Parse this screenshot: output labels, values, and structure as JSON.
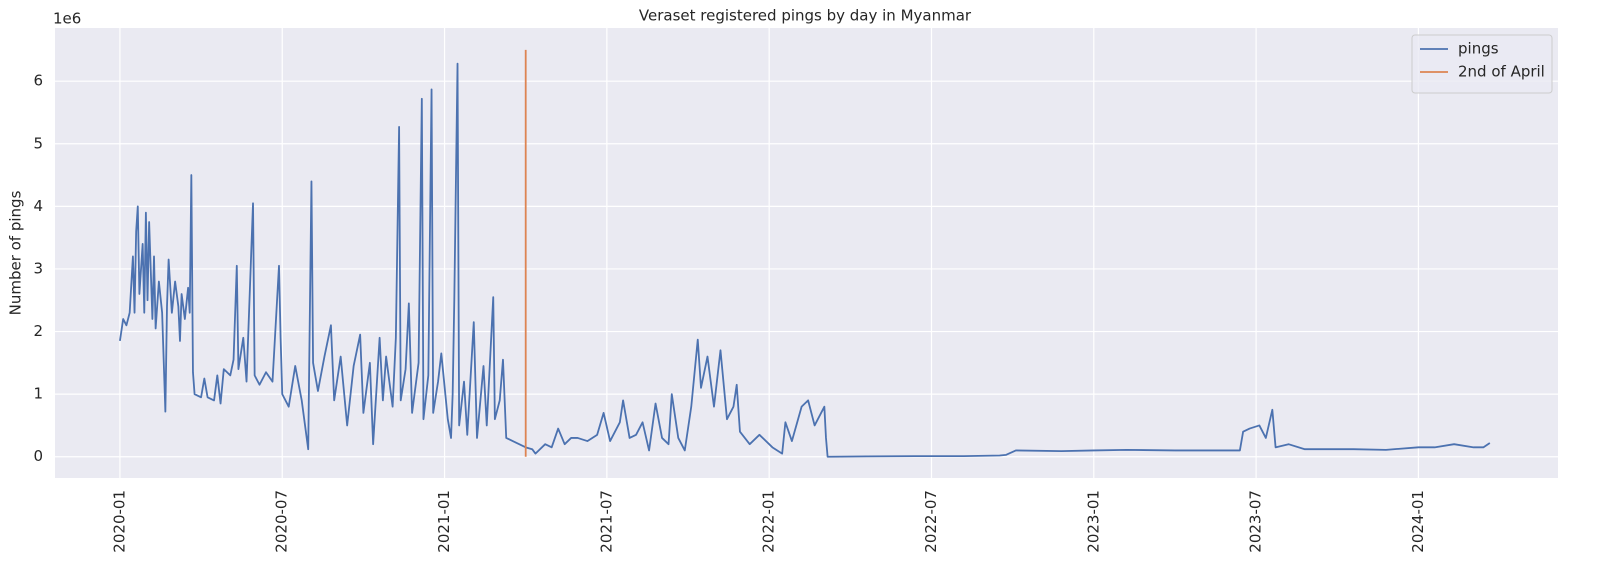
{
  "chart_data": {
    "type": "line",
    "title": "Veraset registered pings by day in Myanmar",
    "y_label": "Number of pings",
    "y_offset_label": "1e6",
    "xlim": [
      2019.8,
      2024.43
    ],
    "ylim": [
      -340000,
      6850000
    ],
    "grid": true,
    "legend": "upper right",
    "xticks": [
      {
        "value": 2020.0,
        "label": "2020-01"
      },
      {
        "value": 2020.5,
        "label": "2020-07"
      },
      {
        "value": 2021.0,
        "label": "2021-01"
      },
      {
        "value": 2021.5,
        "label": "2021-07"
      },
      {
        "value": 2022.0,
        "label": "2022-01"
      },
      {
        "value": 2022.5,
        "label": "2022-07"
      },
      {
        "value": 2023.0,
        "label": "2023-01"
      },
      {
        "value": 2023.5,
        "label": "2023-07"
      },
      {
        "value": 2024.0,
        "label": "2024-01"
      }
    ],
    "yticks": [
      0,
      {
        "value": 1000000,
        "label": "1"
      },
      {
        "value": 2000000,
        "label": "2"
      },
      {
        "value": 3000000,
        "label": "3"
      },
      {
        "value": 4000000,
        "label": "4"
      },
      {
        "value": 5000000,
        "label": "5"
      },
      {
        "value": 6000000,
        "label": "6"
      }
    ],
    "series": [
      {
        "name": "pings",
        "color": "#4c72b0",
        "x": [
          2020.0,
          2020.01,
          2020.02,
          2020.03,
          2020.04,
          2020.045,
          2020.05,
          2020.055,
          2020.06,
          2020.07,
          2020.075,
          2020.08,
          2020.085,
          2020.09,
          2020.1,
          2020.105,
          2020.11,
          2020.12,
          2020.13,
          2020.14,
          2020.145,
          2020.15,
          2020.16,
          2020.17,
          2020.18,
          2020.185,
          2020.19,
          2020.2,
          2020.21,
          2020.215,
          2020.22,
          2020.225,
          2020.23,
          2020.25,
          2020.26,
          2020.27,
          2020.29,
          2020.3,
          2020.31,
          2020.32,
          2020.34,
          2020.35,
          2020.36,
          2020.365,
          2020.38,
          2020.39,
          2020.41,
          2020.415,
          2020.43,
          2020.45,
          2020.47,
          2020.49,
          2020.495,
          2020.5,
          2020.52,
          2020.54,
          2020.56,
          2020.58,
          2020.59,
          2020.595,
          2020.61,
          2020.63,
          2020.65,
          2020.66,
          2020.68,
          2020.7,
          2020.72,
          2020.74,
          2020.75,
          2020.77,
          2020.78,
          2020.8,
          2020.81,
          2020.82,
          2020.84,
          2020.85,
          2020.86,
          2020.865,
          2020.88,
          2020.89,
          2020.9,
          2020.92,
          2020.93,
          2020.935,
          2020.95,
          2020.96,
          2020.965,
          2020.98,
          2020.99,
          2021.01,
          2021.02,
          2021.025,
          2021.03,
          2021.04,
          2021.045,
          2021.06,
          2021.07,
          2021.09,
          2021.1,
          2021.12,
          2021.13,
          2021.15,
          2021.155,
          2021.17,
          2021.18,
          2021.19,
          2021.21,
          2021.23,
          2021.25,
          2021.27,
          2021.28,
          2021.31,
          2021.33,
          2021.35,
          2021.37,
          2021.39,
          2021.41,
          2021.44,
          2021.47,
          2021.49,
          2021.51,
          2021.54,
          2021.55,
          2021.57,
          2021.59,
          2021.61,
          2021.63,
          2021.65,
          2021.67,
          2021.69,
          2021.7,
          2021.72,
          2021.74,
          2021.76,
          2021.78,
          2021.79,
          2021.81,
          2021.83,
          2021.85,
          2021.87,
          2021.89,
          2021.9,
          2021.91,
          2021.94,
          2021.97,
          2022.01,
          2022.04,
          2022.05,
          2022.07,
          2022.1,
          2022.12,
          2022.14,
          2022.17,
          2022.175,
          2022.18,
          2022.3,
          2022.45,
          2022.6,
          2022.71,
          2022.73,
          2022.76,
          2022.9,
          2023.0,
          2023.1,
          2023.25,
          2023.45,
          2023.46,
          2023.48,
          2023.51,
          2023.53,
          2023.55,
          2023.56,
          2023.6,
          2023.65,
          2023.8,
          2023.9,
          2024.0,
          2024.05,
          2024.11,
          2024.17,
          2024.2,
          2024.22
        ],
        "values": [
          1850000,
          2200000,
          2100000,
          2300000,
          3200000,
          2300000,
          3600000,
          4000000,
          2600000,
          3400000,
          2300000,
          3900000,
          2500000,
          3750000,
          2200000,
          3200000,
          2050000,
          2800000,
          2300000,
          720000,
          2400000,
          3150000,
          2300000,
          2800000,
          2400000,
          1850000,
          2600000,
          2200000,
          2700000,
          2300000,
          4500000,
          1350000,
          1000000,
          950000,
          1250000,
          950000,
          900000,
          1300000,
          850000,
          1400000,
          1300000,
          1550000,
          3050000,
          1400000,
          1900000,
          1200000,
          4050000,
          1300000,
          1150000,
          1350000,
          1200000,
          3050000,
          1900000,
          1000000,
          800000,
          1450000,
          900000,
          120000,
          4400000,
          1500000,
          1050000,
          1600000,
          2100000,
          900000,
          1600000,
          500000,
          1450000,
          1950000,
          700000,
          1500000,
          200000,
          1900000,
          900000,
          1600000,
          800000,
          1900000,
          5270000,
          900000,
          1400000,
          2450000,
          700000,
          1500000,
          5720000,
          600000,
          1300000,
          5870000,
          700000,
          1200000,
          1650000,
          600000,
          300000,
          1000000,
          2500000,
          6280000,
          500000,
          1200000,
          350000,
          2150000,
          300000,
          1450000,
          500000,
          2550000,
          600000,
          900000,
          1550000,
          300000,
          250000,
          200000,
          150000,
          120000,
          50000,
          200000,
          150000,
          450000,
          200000,
          300000,
          300000,
          250000,
          350000,
          700000,
          250000,
          550000,
          900000,
          300000,
          350000,
          550000,
          100000,
          850000,
          300000,
          200000,
          1000000,
          300000,
          100000,
          800000,
          1870000,
          1100000,
          1600000,
          800000,
          1700000,
          600000,
          800000,
          1150000,
          400000,
          200000,
          350000,
          150000,
          50000,
          550000,
          250000,
          800000,
          900000,
          500000,
          800000,
          300000,
          0,
          5000,
          10000,
          10000,
          20000,
          30000,
          100000,
          90000,
          100000,
          110000,
          100000,
          100000,
          400000,
          450000,
          500000,
          300000,
          750000,
          150000,
          200000,
          120000,
          120000,
          110000,
          150000,
          150000,
          200000,
          150000,
          150000,
          220000
        ]
      },
      {
        "name": "2nd of April",
        "color": "#dd8452",
        "x": [
          2021.25,
          2021.25
        ],
        "values": [
          0,
          6500000
        ]
      }
    ]
  }
}
